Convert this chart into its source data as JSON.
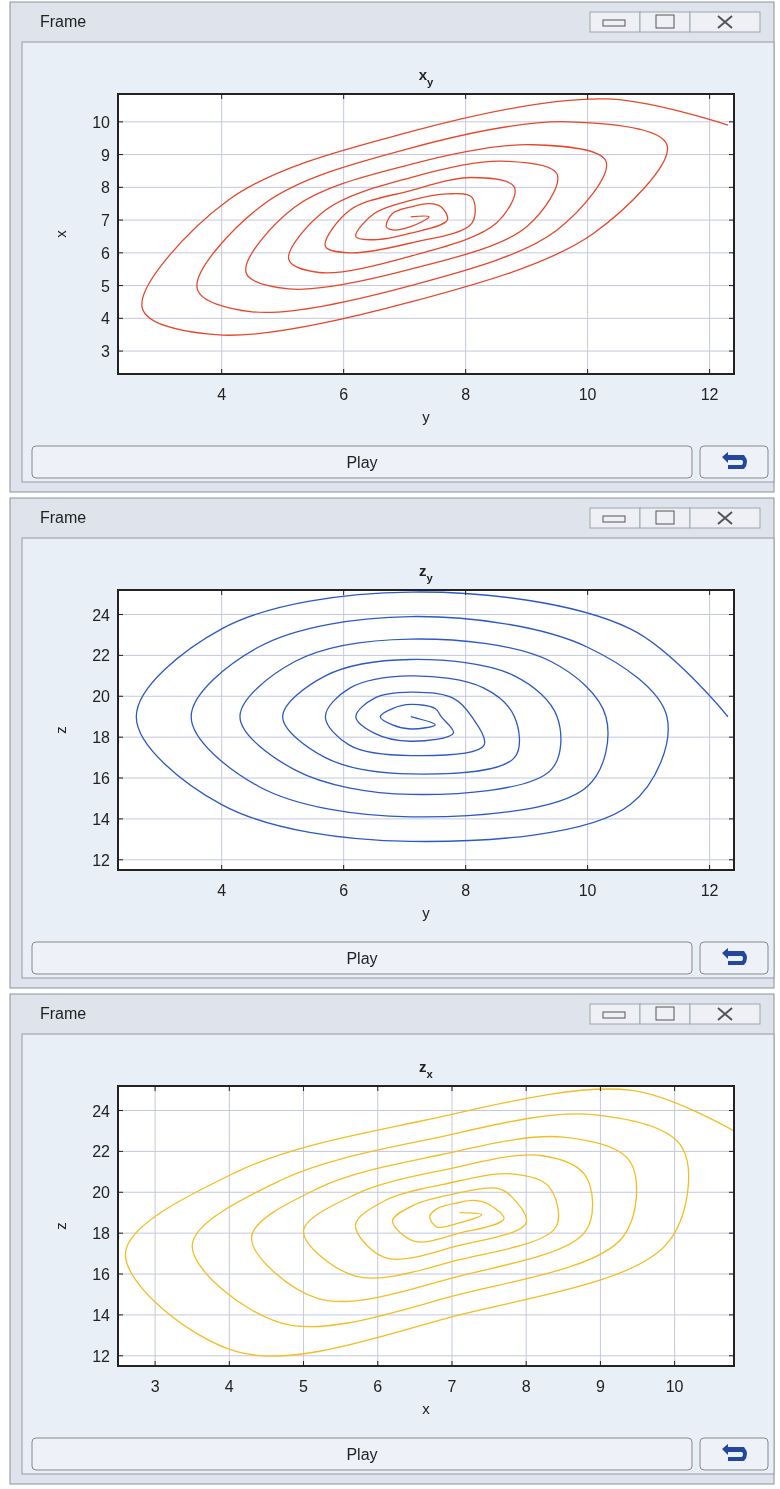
{
  "chart_data": [
    {
      "type": "line",
      "title": "x$_{y}$",
      "xlabel": "y",
      "ylabel": "x",
      "annotations": [
        "Frame",
        "Play"
      ],
      "xlim": [
        2.3,
        12.4
      ],
      "ylim": [
        2.3,
        10.85
      ],
      "xticks": [
        4,
        6,
        8,
        10,
        12
      ],
      "yticks": [
        3,
        4,
        5,
        6,
        7,
        8,
        9,
        10
      ],
      "grid": true,
      "series": [
        {
          "color": "#e8472c",
          "x": [
            12.3,
            10.3,
            7.1,
            4.1,
            2.7,
            3.9,
            7.1,
            10.1,
            11.3,
            9.7,
            7.1,
            4.7,
            3.6,
            4.5,
            7.1,
            9.5,
            10.3,
            9.1,
            7.1,
            5.2,
            4.4,
            5.1,
            7.1,
            9.0,
            9.5,
            8.6,
            7.1,
            5.7,
            5.1,
            5.6,
            7.1,
            8.5,
            8.8,
            8.1,
            7.1,
            6.1,
            5.7,
            6.1,
            7.1,
            8.1,
            8.1,
            7.7,
            7.1,
            6.5,
            6.2,
            6.5,
            7.1,
            7.7,
            7.6,
            7.4,
            7.1,
            6.8,
            6.7,
            6.8,
            7.1,
            7.4,
            7.1
          ],
          "values": [
            9.9,
            10.7,
            9.7,
            7.6,
            4.3,
            3.5,
            4.5,
            6.6,
            9.3,
            10.0,
            9.2,
            7.5,
            4.9,
            4.2,
            5.0,
            6.7,
            8.8,
            9.3,
            8.7,
            7.4,
            5.4,
            4.9,
            5.5,
            6.8,
            8.4,
            8.8,
            8.3,
            7.3,
            5.8,
            5.4,
            5.9,
            6.9,
            8.0,
            8.3,
            7.9,
            7.3,
            6.2,
            6.0,
            6.3,
            6.9,
            7.7,
            7.8,
            7.6,
            7.2,
            6.5,
            6.4,
            6.6,
            7.0,
            7.4,
            7.5,
            7.4,
            7.2,
            6.8,
            6.7,
            6.8,
            7.1,
            7.1
          ]
        }
      ]
    },
    {
      "type": "line",
      "title": "z$_{y}$",
      "xlabel": "y",
      "ylabel": "z",
      "annotations": [
        "Frame",
        "Play"
      ],
      "xlim": [
        2.3,
        12.4
      ],
      "ylim": [
        11.5,
        25.2
      ],
      "xticks": [
        4,
        6,
        8,
        10,
        12
      ],
      "yticks": [
        12,
        14,
        16,
        18,
        20,
        22,
        24
      ],
      "grid": true,
      "series": [
        {
          "color": "#2d59c6",
          "x": [
            12.3,
            10.7,
            7.1,
            4.0,
            2.6,
            4.0,
            7.1,
            10.7,
            11.3,
            10.0,
            7.1,
            4.6,
            3.5,
            4.6,
            7.1,
            10.0,
            10.3,
            9.4,
            7.1,
            5.2,
            4.3,
            5.2,
            7.1,
            9.4,
            9.5,
            8.8,
            7.1,
            5.7,
            5.0,
            5.7,
            7.1,
            8.8,
            8.8,
            8.3,
            7.1,
            6.1,
            5.7,
            6.1,
            7.1,
            8.3,
            8.1,
            7.8,
            7.1,
            6.5,
            6.2,
            6.5,
            7.1,
            7.8,
            7.6,
            7.5,
            7.1,
            6.8,
            6.6,
            6.8,
            7.1,
            7.5,
            7.1
          ],
          "values": [
            19.0,
            23.3,
            25.1,
            23.3,
            19.0,
            14.7,
            12.9,
            14.7,
            19.0,
            22.4,
            23.9,
            22.4,
            19.0,
            15.6,
            14.1,
            15.6,
            19.0,
            21.7,
            22.8,
            21.7,
            19.0,
            16.4,
            15.2,
            16.4,
            19.0,
            21.0,
            21.8,
            21.0,
            19.0,
            17.0,
            16.2,
            17.0,
            19.0,
            20.4,
            21.0,
            20.4,
            19.0,
            17.6,
            17.1,
            17.6,
            19.0,
            19.9,
            20.2,
            19.9,
            19.0,
            18.2,
            17.8,
            18.2,
            19.0,
            19.4,
            19.6,
            19.4,
            19.0,
            18.6,
            18.4,
            18.6,
            19.0
          ]
        }
      ]
    },
    {
      "type": "line",
      "title": "z$_{x}$",
      "xlabel": "x",
      "ylabel": "z",
      "annotations": [
        "Frame",
        "Play"
      ],
      "xlim": [
        2.5,
        10.8
      ],
      "ylim": [
        11.5,
        25.2
      ],
      "xticks": [
        3,
        4,
        5,
        6,
        7,
        8,
        9,
        10
      ],
      "yticks": [
        12,
        14,
        16,
        18,
        20,
        22,
        24
      ],
      "grid": true,
      "series": [
        {
          "color": "#f4bd22",
          "x": [
            10.8,
            9.4,
            6.6,
            4.1,
            2.6,
            4.1,
            7.1,
            9.9,
            10.1,
            8.9,
            6.7,
            4.7,
            3.5,
            4.7,
            7.1,
            9.3,
            9.4,
            8.5,
            6.8,
            5.2,
            4.3,
            5.2,
            7.1,
            8.8,
            8.8,
            8.2,
            6.9,
            5.7,
            5.0,
            5.7,
            7.1,
            8.4,
            8.3,
            7.8,
            6.9,
            6.1,
            5.7,
            6.1,
            7.1,
            8.0,
            7.8,
            7.6,
            7.0,
            6.5,
            6.2,
            6.5,
            7.1,
            7.7,
            7.5,
            7.3,
            7.1,
            6.8,
            6.7,
            6.8,
            7.1,
            7.4,
            7.1
          ],
          "values": [
            23.0,
            25.0,
            23.5,
            21.0,
            17.0,
            12.2,
            14.0,
            17.5,
            22.2,
            23.8,
            22.6,
            20.6,
            17.4,
            13.6,
            15.0,
            17.8,
            21.5,
            22.7,
            21.8,
            20.2,
            17.8,
            14.8,
            15.9,
            18.1,
            20.8,
            21.8,
            21.1,
            19.9,
            18.1,
            15.9,
            16.7,
            18.3,
            20.3,
            20.9,
            20.4,
            19.6,
            18.4,
            16.8,
            17.4,
            18.5,
            19.8,
            20.2,
            19.9,
            19.4,
            18.6,
            17.6,
            18.0,
            18.7,
            19.4,
            19.6,
            19.5,
            19.2,
            18.8,
            18.3,
            18.5,
            18.9,
            19.0
          ]
        }
      ]
    }
  ]
}
